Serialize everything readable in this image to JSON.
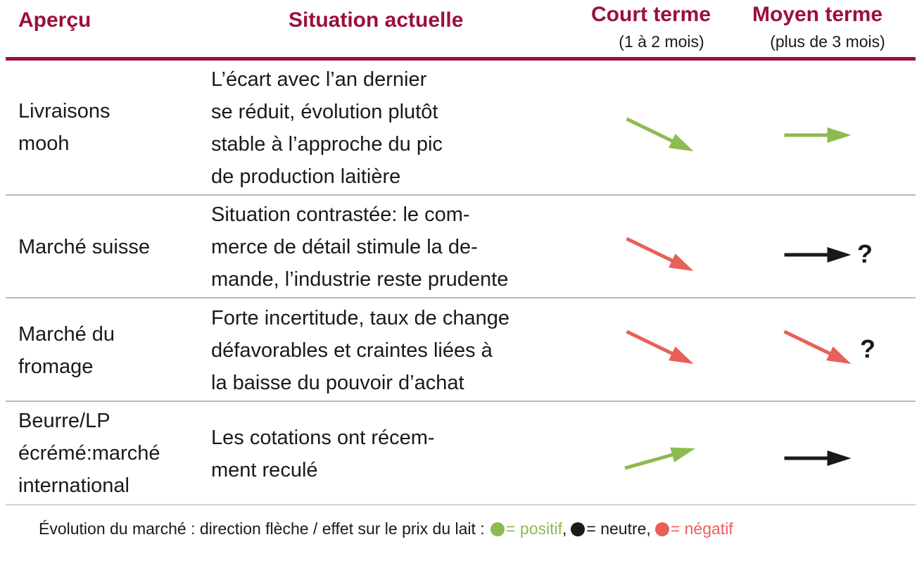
{
  "header": {
    "col_overview": "Aperçu",
    "col_situation": "Situation actuelle",
    "col_short": "Court terme",
    "col_short_sub": "(1 à 2 mois)",
    "col_medium": "Moyen terme",
    "col_medium_sub": "(plus de 3 mois)"
  },
  "colors": {
    "accent": "#9c1039",
    "positive": "#8dbb4f",
    "neutral": "#1a1a1a",
    "negative": "#e8605a"
  },
  "rows": [
    {
      "overview": "Livraisons\nmooh",
      "situation": "L’écart avec l’an dernier\nse réduit, évolution plutôt\nstable à l’approche du pic\nde production laitière",
      "short": {
        "direction": "down-right",
        "effect": "positive"
      },
      "medium": {
        "direction": "right",
        "effect": "positive"
      },
      "medium_uncertain": ""
    },
    {
      "overview": "Marché suisse",
      "situation": "Situation contrastée: le com-\nmerce de détail stimule la de-\nmande, l’industrie reste prudente",
      "short": {
        "direction": "down-right",
        "effect": "negative"
      },
      "medium": {
        "direction": "right",
        "effect": "neutral"
      },
      "medium_uncertain": "?"
    },
    {
      "overview": "Marché du\nfromage",
      "situation": "Forte incertitude, taux de change\ndéfavorables et craintes liées à\nla baisse du pouvoir d’achat",
      "short": {
        "direction": "down-right",
        "effect": "negative"
      },
      "medium": {
        "direction": "down-right",
        "effect": "negative"
      },
      "medium_uncertain": "?"
    },
    {
      "overview": "Beurre/LP\nécrémé:marché\ninternational",
      "situation": "Les cotations ont récem-\nment reculé",
      "short": {
        "direction": "up-right",
        "effect": "positive"
      },
      "medium": {
        "direction": "right",
        "effect": "neutral"
      },
      "medium_uncertain": ""
    }
  ],
  "footer": {
    "text": "Évolution du marché : direction flèche / effet sur le prix du lait : ",
    "positive": "= positif",
    "neutral": "= neutre,",
    "negative": "= négatif"
  }
}
